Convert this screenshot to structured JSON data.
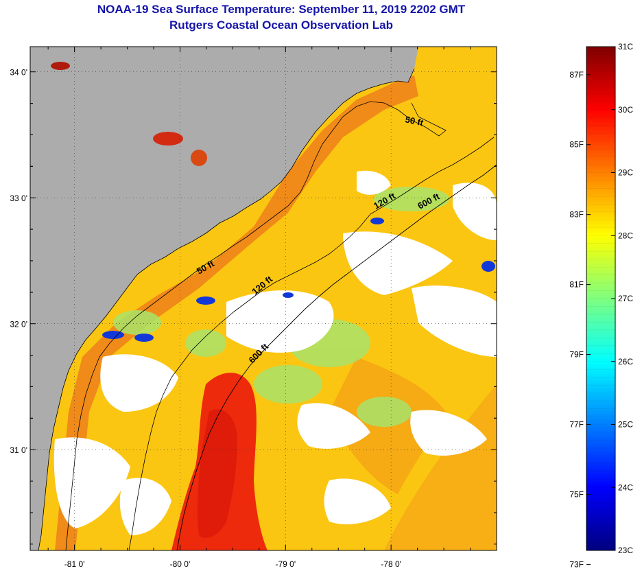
{
  "header": {
    "title": "NOAA-19 Sea Surface Temperature:  September 11, 2019 2202 GMT",
    "subtitle": "Rutgers Coastal Ocean Observation Lab"
  },
  "map": {
    "longitude_ticks": [
      {
        "value": -81,
        "label": "-81 0'"
      },
      {
        "value": -80,
        "label": "-80 0'"
      },
      {
        "value": -79,
        "label": "-79 0'"
      },
      {
        "value": -78,
        "label": "-78 0'"
      }
    ],
    "latitude_ticks": [
      {
        "value": 34,
        "label": "34 0'"
      },
      {
        "value": 33,
        "label": "33 0'"
      },
      {
        "value": 32,
        "label": "32 0'"
      },
      {
        "value": 31,
        "label": "31 0'"
      }
    ],
    "lon_range": [
      -81.42,
      -77.0
    ],
    "lat_range": [
      30.2,
      34.2
    ],
    "isobath_labels": [
      {
        "text": "50 ft",
        "depth": "50 ft",
        "position": "northeast"
      },
      {
        "text": "50 ft",
        "depth": "50 ft",
        "position": "middle"
      },
      {
        "text": "120 ft",
        "depth": "120 ft",
        "position": "northeast"
      },
      {
        "text": "120 ft",
        "depth": "120 ft",
        "position": "middle"
      },
      {
        "text": "600 ft",
        "depth": "600 ft",
        "position": "northeast"
      },
      {
        "text": "600 ft",
        "depth": "600 ft",
        "position": "south"
      }
    ],
    "colors": {
      "land": "#acacac",
      "cloud": "#ffffff",
      "warm_core": "#ee2a0c",
      "shelf_water": "#fbc612",
      "gulf_stream_edge": "#f4a514",
      "cool_patch": "#a8e36a",
      "coastal_cold": "#1238d8"
    }
  },
  "colorbar": {
    "celsius_labels": [
      "31C",
      "30C",
      "29C",
      "28C",
      "27C",
      "26C",
      "25C",
      "24C",
      "23C"
    ],
    "fahrenheit_labels": [
      "87F",
      "85F",
      "83F",
      "81F",
      "79F",
      "77F",
      "75F",
      "73F"
    ],
    "range_c": [
      23,
      31
    ],
    "gradient": [
      "#00007f",
      "#0000ff",
      "#007fff",
      "#00ffff",
      "#7fff7f",
      "#ffff00",
      "#ff7f00",
      "#ff0000",
      "#7f0000"
    ]
  }
}
